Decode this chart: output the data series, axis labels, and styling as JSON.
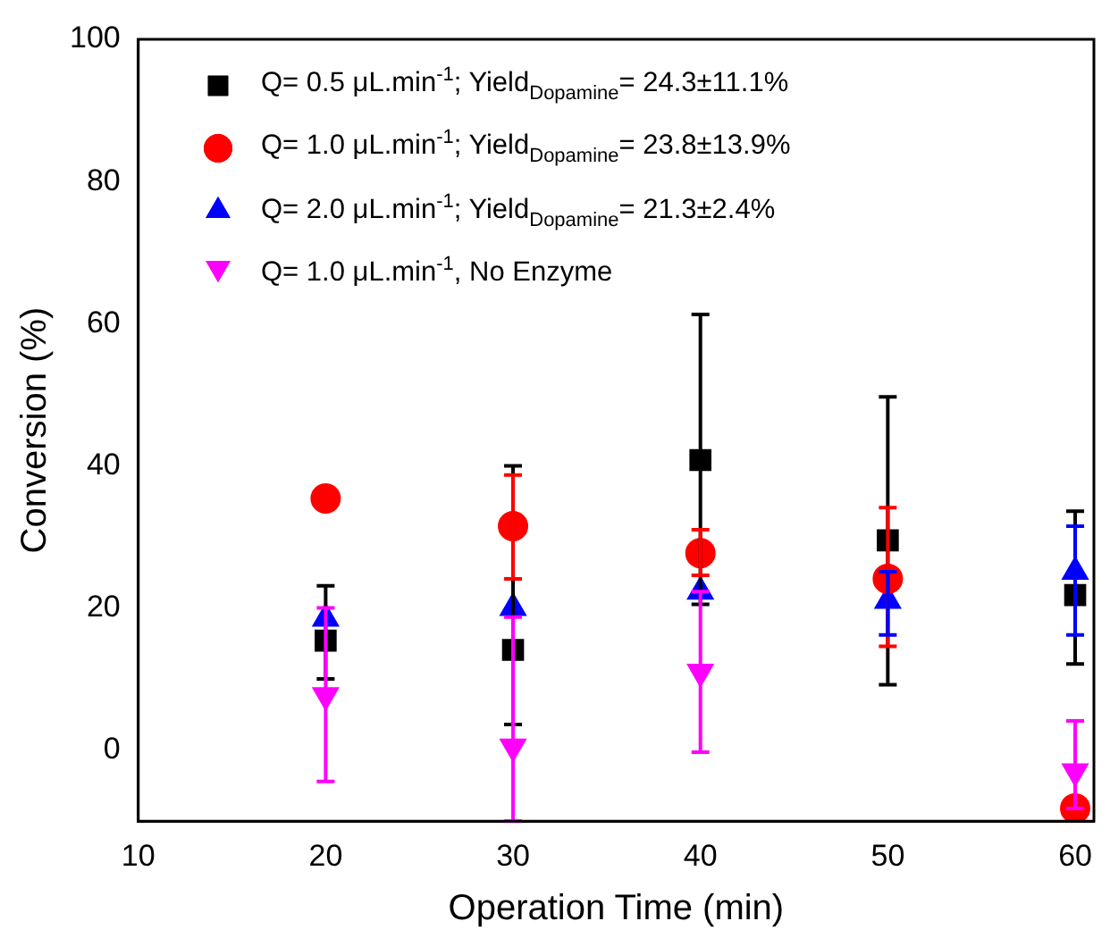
{
  "chart_data": {
    "type": "scatter",
    "xlabel": "Operation Time (min)",
    "ylabel": "Conversion (%)",
    "xlim": [
      10,
      61
    ],
    "xticks": [
      10,
      20,
      30,
      40,
      50,
      60
    ],
    "ylim": [
      -10,
      100
    ],
    "yticks": [
      0,
      20,
      40,
      60,
      80,
      100
    ],
    "grid": false,
    "legend": "top left",
    "series": [
      {
        "name": "Q= 0.5 μL.min$^{-1}$; Yield$_{Dopamine}$= 24.3±11.1%",
        "color": "#000000",
        "marker": "square",
        "x": [
          20,
          30,
          40,
          50,
          60
        ],
        "values": [
          15.4,
          14.1,
          40.8,
          29.5,
          21.8
        ],
        "errors": [
          [
            10.0,
            23.1
          ],
          [
            3.6,
            40.0
          ],
          [
            20.5,
            61.3
          ],
          [
            9.2,
            49.7
          ],
          [
            12.1,
            33.6
          ]
        ]
      },
      {
        "name": "Q= 1.0 μL.min$^{-1}$; Yield$_{Dopamine}$= 23.8±13.9%",
        "color": "#ff0000",
        "marker": "circle",
        "x": [
          20,
          30,
          40,
          50,
          60
        ],
        "values": [
          35.4,
          31.5,
          27.7,
          24.1,
          -8.2
        ],
        "errors": [
          null,
          [
            24.1,
            38.7
          ],
          [
            24.6,
            31.0
          ],
          [
            14.6,
            34.1
          ],
          null
        ]
      },
      {
        "name": "Q= 2.0 μL.min$^{-1}$; Yield$_{Dopamine}$= 21.3±2.4%",
        "color": "#0000ff",
        "marker": "triangle",
        "x": [
          20,
          30,
          40,
          50,
          60
        ],
        "values": [
          18.5,
          20.0,
          22.3,
          21.0,
          25.1
        ],
        "errors": [
          null,
          null,
          null,
          [
            16.2,
            25.1
          ],
          [
            16.2,
            31.5
          ]
        ]
      },
      {
        "name": "Q= 1.0 μL.min$^{-1}$, No Enzyme",
        "color": "#ff00ff",
        "marker": "triangle-down",
        "x": [
          20,
          30,
          40,
          60
        ],
        "values": [
          7.7,
          0.5,
          11.0,
          -3.0
        ],
        "errors": [
          [
            -4.4,
            20.0
          ],
          [
            -10.0,
            18.7
          ],
          [
            -0.3,
            22.3
          ],
          [
            -8.2,
            4.1
          ]
        ]
      }
    ]
  }
}
